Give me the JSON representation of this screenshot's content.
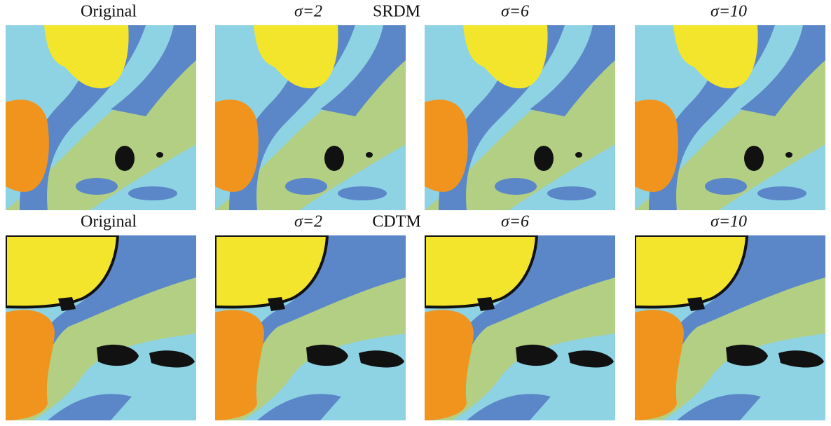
{
  "rows": [
    {
      "method": "SRDM",
      "labels": [
        "Original",
        "σ=2",
        "σ=6",
        "σ=10"
      ]
    },
    {
      "method": "CDTM",
      "labels": [
        "Original",
        "σ=2",
        "σ=6",
        "σ=10"
      ]
    }
  ]
}
